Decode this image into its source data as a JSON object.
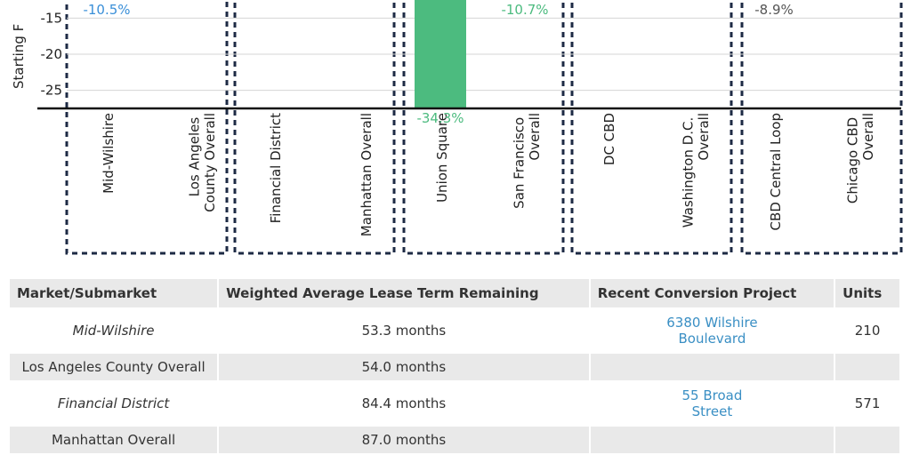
{
  "chart_data": {
    "type": "bar",
    "y_label": "Starting F",
    "categories": [
      "Mid-Wilshire",
      "Los Angeles County Overall",
      "Financial District",
      "Manhattan Overall",
      "Union Square",
      "San Francisco Overall",
      "DC CBD",
      "Washington D.C. Overall",
      "CBD Central Loop",
      "Chicago CBD Overall"
    ],
    "values": [
      -10.5,
      null,
      null,
      null,
      -34.3,
      -10.7,
      null,
      null,
      -8.9,
      null
    ],
    "value_labels": [
      "-10.5%",
      null,
      null,
      null,
      "-34.3%",
      "-10.7%",
      null,
      null,
      "-8.9%",
      null
    ],
    "colors": [
      "#3a8fd8",
      "#3a8fd8",
      "#555555",
      "#555555",
      "#4cbb7f",
      "#4cbb7f",
      "#555555",
      "#555555",
      "#555555",
      "#555555"
    ],
    "ylim": [
      -27.5,
      -12.5
    ],
    "yticks": [
      -15,
      -20,
      -25
    ],
    "grid": true
  },
  "table": {
    "header": [
      "Market/Submarket",
      "Weighted Average Lease Term Remaining",
      "Recent Conversion Project",
      "Units"
    ],
    "rows": [
      [
        "Mid-Wilshire",
        "53.3 months",
        "6380 Wilshire Boulevard",
        "210"
      ],
      [
        "Los Angeles County Overall",
        "54.0 months",
        null,
        null
      ],
      [
        "Financial District",
        "84.4 months",
        "55 Broad Street",
        "571"
      ],
      [
        "Manhattan Overall",
        "87.0 months",
        null,
        null
      ]
    ]
  }
}
